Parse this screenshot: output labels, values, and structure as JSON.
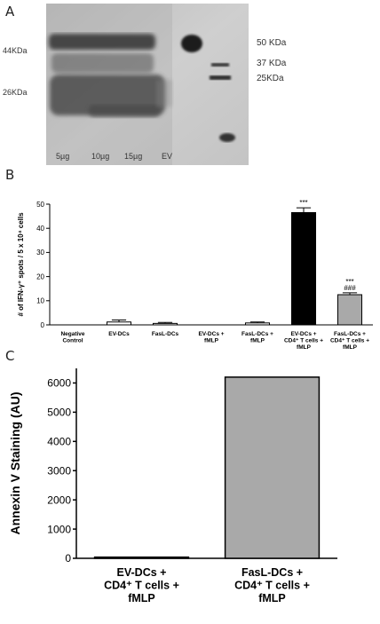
{
  "panels": {
    "a": "A",
    "b": "B",
    "c": "C"
  },
  "blot": {
    "left_markers": [
      "44KDa",
      "26KDa"
    ],
    "right_markers": [
      "50 KDa",
      "37 KDa",
      "25KDa"
    ],
    "lane_labels": [
      "5µg",
      "10µg",
      "15µg",
      "EV"
    ]
  },
  "chart_data": [
    {
      "type": "bar",
      "ylabel": "# of IFN-γ⁺ spots / 5 x 10⁴ cells",
      "ylim": [
        0,
        50
      ],
      "yticks": [
        0,
        10,
        20,
        30,
        40,
        50
      ],
      "categories": [
        [
          "Negative",
          "Control"
        ],
        [
          "EV-DCs"
        ],
        [
          "FasL-DCs"
        ],
        [
          "EV-DCs +",
          "fMLP"
        ],
        [
          "FasL-DCs +",
          "fMLP"
        ],
        [
          "EV-DCs +",
          "CD4⁺ T cells +",
          "fMLP"
        ],
        [
          "FasL-DCs +",
          "CD4⁺ T cells +",
          "fMLP"
        ]
      ],
      "values": [
        0,
        1.2,
        0.6,
        0,
        0.8,
        46.5,
        12.5
      ],
      "errors": [
        0,
        0.8,
        0.4,
        0,
        0.4,
        2.0,
        0.8
      ],
      "bar_colors": [
        "#ffffff",
        "#ffffff",
        "#ffffff",
        "#ffffff",
        "#ffffff",
        "#000000",
        "#a9a9a9"
      ],
      "annotations": [
        {
          "index": 5,
          "lines": [
            "***"
          ]
        },
        {
          "index": 6,
          "lines": [
            "***",
            "###"
          ]
        }
      ],
      "grid": false
    },
    {
      "type": "bar",
      "ylabel": "Annexin V Staining (AU)",
      "ylim": [
        0,
        6500
      ],
      "yticks": [
        0,
        1000,
        2000,
        3000,
        4000,
        5000,
        6000
      ],
      "categories": [
        [
          "EV-DCs +",
          "CD4⁺ T cells +",
          "fMLP"
        ],
        [
          "FasL-DCs +",
          "CD4⁺ T cells +",
          "fMLP"
        ]
      ],
      "values": [
        40,
        6200
      ],
      "bar_colors": [
        "#000000",
        "#a9a9a9"
      ],
      "grid": false
    }
  ]
}
